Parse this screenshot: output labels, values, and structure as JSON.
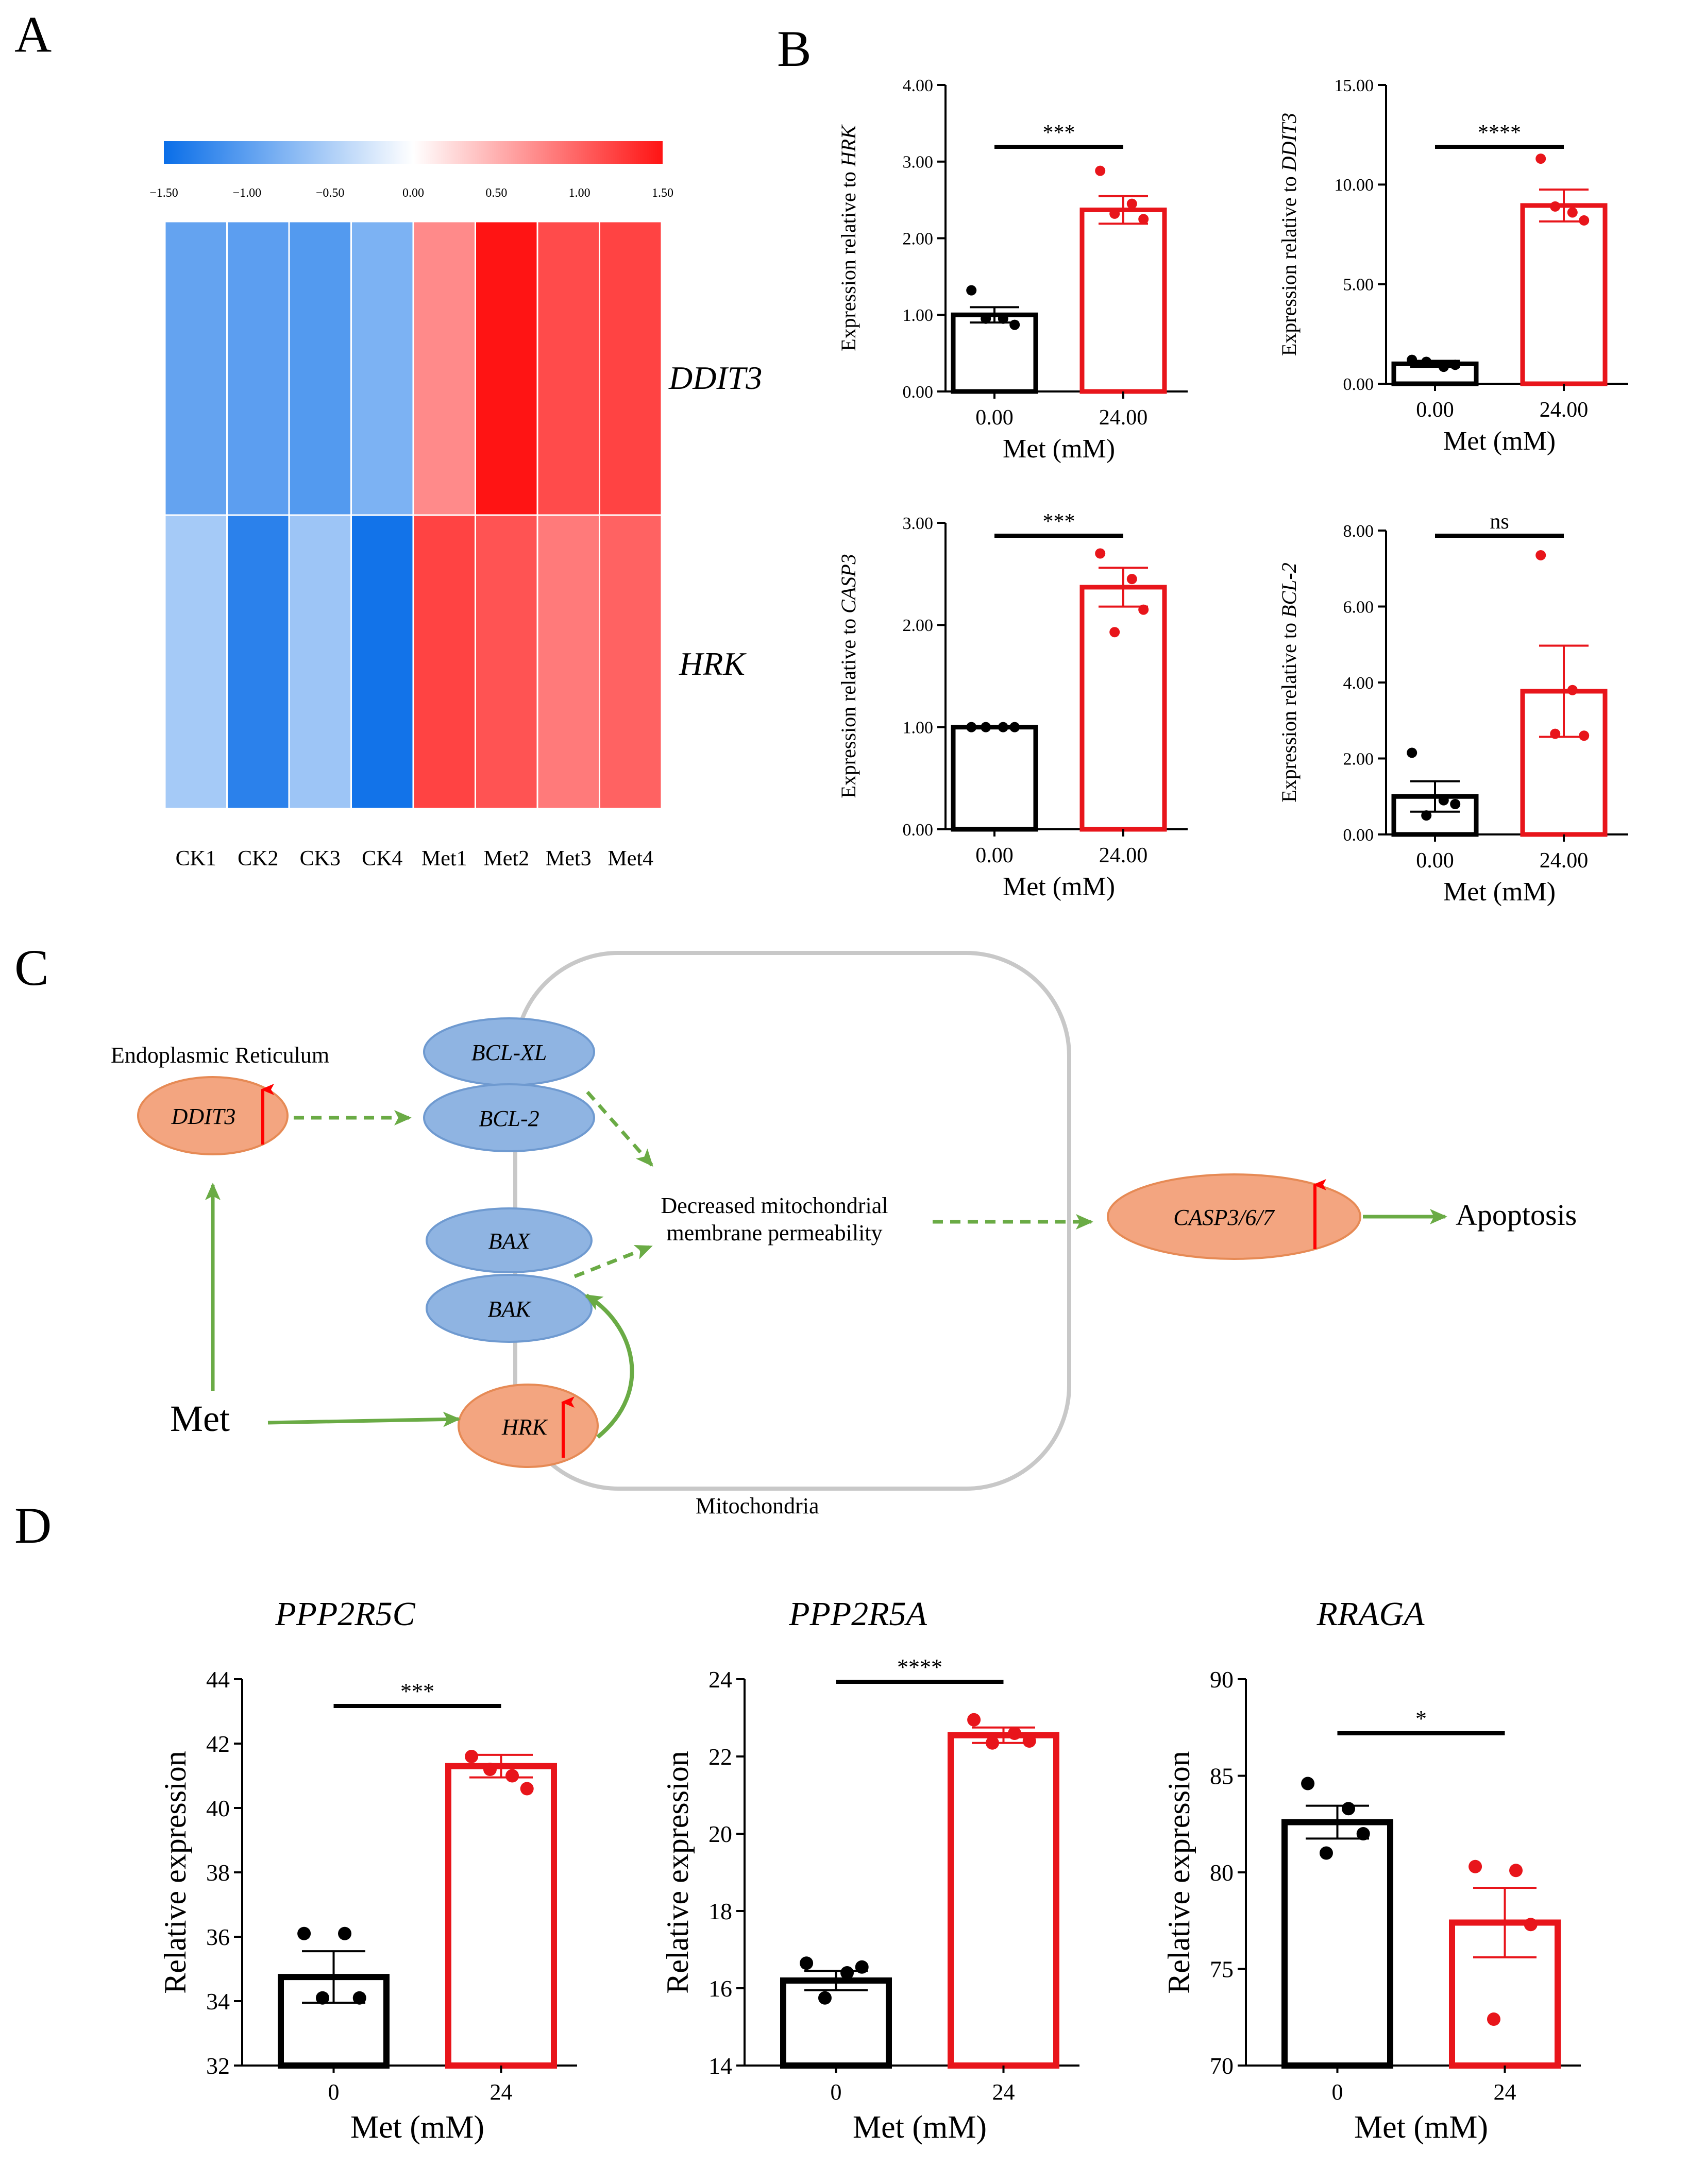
{
  "panels": {
    "A": "A",
    "B": "B",
    "C": "C",
    "D": "D"
  },
  "heatmap": {
    "scale_ticks": [
      "−1.50",
      "−1.00",
      "−0.50",
      "0.00",
      "0.50",
      "1.00",
      "1.50"
    ],
    "scale_range": [
      -1.5,
      1.5
    ],
    "columns": [
      "CK1",
      "CK2",
      "CK3",
      "CK4",
      "Met1",
      "Met2",
      "Met3",
      "Met4"
    ],
    "rows": [
      {
        "gene": "DDIT3",
        "values": [
          -0.95,
          -1.0,
          -1.05,
          -0.8,
          0.75,
          1.5,
          1.15,
          1.2
        ]
      },
      {
        "gene": "HRK",
        "values": [
          -0.55,
          -1.3,
          -0.6,
          -1.45,
          1.2,
          1.1,
          0.85,
          1.0
        ]
      }
    ]
  },
  "chart_data": [
    {
      "id": "B1",
      "type": "bar",
      "categories": [
        "0.00",
        "24.00"
      ],
      "values": [
        1.0,
        2.37
      ],
      "errors": [
        0.1,
        0.18
      ],
      "points": [
        [
          1.32,
          0.95,
          0.87,
          0.95
        ],
        [
          2.88,
          2.45,
          2.25,
          2.32
        ]
      ],
      "ylabel_prefix": "Expression relative to ",
      "ylabel_gene": "HRK",
      "xlabel": "Met (mM)",
      "ylim": [
        0,
        4
      ],
      "yticks": [
        "0.00",
        "1.00",
        "2.00",
        "3.00",
        "4.00"
      ],
      "yticks_values": [
        0,
        1,
        2,
        3,
        4
      ],
      "sig": "***"
    },
    {
      "id": "B2",
      "type": "bar",
      "categories": [
        "0.00",
        "24.00"
      ],
      "values": [
        1.0,
        8.95
      ],
      "errors": [
        0.15,
        0.8
      ],
      "points": [
        [
          1.2,
          0.85,
          0.95,
          1.1
        ],
        [
          11.3,
          8.6,
          8.2,
          8.9
        ]
      ],
      "ylabel_prefix": "Expression relative to ",
      "ylabel_gene": "DDIT3",
      "xlabel": "Met (mM)",
      "ylim": [
        0,
        15
      ],
      "yticks": [
        "0.00",
        "5.00",
        "10.00",
        "15.00"
      ],
      "yticks_values": [
        0,
        5,
        10,
        15
      ],
      "sig": "****"
    },
    {
      "id": "B3",
      "type": "bar",
      "categories": [
        "0.00",
        "24.00"
      ],
      "values": [
        1.0,
        2.37
      ],
      "errors": [
        0.01,
        0.19
      ],
      "points": [
        [
          1.0,
          1.0,
          1.0,
          1.0
        ],
        [
          2.7,
          2.45,
          2.15,
          1.93
        ]
      ],
      "ylabel_prefix": "Expression relative to ",
      "ylabel_gene": "CASP3",
      "xlabel": "Met (mM)",
      "ylim": [
        0,
        3
      ],
      "yticks": [
        "0.00",
        "1.00",
        "2.00",
        "3.00"
      ],
      "yticks_values": [
        0,
        1,
        2,
        3
      ],
      "sig": "***"
    },
    {
      "id": "B4",
      "type": "bar",
      "categories": [
        "0.00",
        "24.00"
      ],
      "values": [
        1.0,
        3.77
      ],
      "errors": [
        0.4,
        1.2
      ],
      "points": [
        [
          2.15,
          0.9,
          0.8,
          0.5
        ],
        [
          7.35,
          3.8,
          2.6,
          2.65
        ]
      ],
      "ylabel_prefix": "Expression relative to ",
      "ylabel_gene": "BCL-2",
      "xlabel": "Met (mM)",
      "ylim": [
        0,
        8
      ],
      "yticks": [
        "0.00",
        "2.00",
        "4.00",
        "6.00",
        "8.00"
      ],
      "yticks_values": [
        0,
        2,
        4,
        6,
        8
      ],
      "sig": "ns"
    },
    {
      "id": "D1",
      "type": "bar",
      "title": "PPP2R5C",
      "categories": [
        "0",
        "24"
      ],
      "values": [
        34.75,
        41.3
      ],
      "errors": [
        0.8,
        0.35
      ],
      "points": [
        [
          36.1,
          36.1,
          34.1,
          34.1
        ],
        [
          41.6,
          41.0,
          40.6,
          41.2
        ]
      ],
      "ylabel": "Relative expression",
      "xlabel": "Met (mM)",
      "ylim": [
        32,
        44
      ],
      "yticks": [
        "32",
        "34",
        "36",
        "38",
        "40",
        "42",
        "44"
      ],
      "yticks_values": [
        32,
        34,
        36,
        38,
        40,
        42,
        44
      ],
      "sig": "***"
    },
    {
      "id": "D2",
      "type": "bar",
      "title": "PPP2R5A",
      "categories": [
        "0",
        "24"
      ],
      "values": [
        16.2,
        22.55
      ],
      "errors": [
        0.25,
        0.2
      ],
      "points": [
        [
          16.65,
          16.4,
          16.55,
          15.75
        ],
        [
          22.95,
          22.6,
          22.4,
          22.35
        ]
      ],
      "ylabel": "Relative expression",
      "xlabel": "Met (mM)",
      "ylim": [
        14,
        24
      ],
      "yticks": [
        "14",
        "16",
        "18",
        "20",
        "22",
        "24"
      ],
      "yticks_values": [
        14,
        16,
        18,
        20,
        22,
        24
      ],
      "sig": "****"
    },
    {
      "id": "D3",
      "type": "bar",
      "title": "RRAGA",
      "categories": [
        "0",
        "24"
      ],
      "values": [
        82.6,
        77.4
      ],
      "errors": [
        0.85,
        1.8
      ],
      "points": [
        [
          84.6,
          83.3,
          82.0,
          81.0
        ],
        [
          80.3,
          80.1,
          77.3,
          72.4
        ]
      ],
      "ylabel": "Relative expression",
      "xlabel": "Met (mM)",
      "ylim": [
        70,
        90
      ],
      "yticks": [
        "70",
        "75",
        "80",
        "85",
        "90"
      ],
      "yticks_values": [
        70,
        75,
        80,
        85,
        90
      ],
      "sig": "*"
    }
  ],
  "diagram": {
    "er_label": "Endoplasmic Reticulum",
    "mito_label": "Mitochondria",
    "ddit3": "DDIT3",
    "bcl_xl": "BCL-XL",
    "bcl2": "BCL-2",
    "bax": "BAX",
    "bak": "BAK",
    "hrk": "HRK",
    "met": "Met",
    "decreased_line1": "Decreased mitochondrial",
    "decreased_line2": "membrane permeability",
    "casp": "CASP3/6/7",
    "apoptosis": "Apoptosis"
  },
  "colors": {
    "neg": "#0a6ee8",
    "pos": "#ff1414",
    "black": "#000000",
    "red": "#e8151b",
    "green": "#6aab45",
    "blue_node": "#8fb4e2",
    "orange_node": "#f3a580",
    "mito": "#c8c8c8",
    "up_arrow": "#ff0000"
  }
}
